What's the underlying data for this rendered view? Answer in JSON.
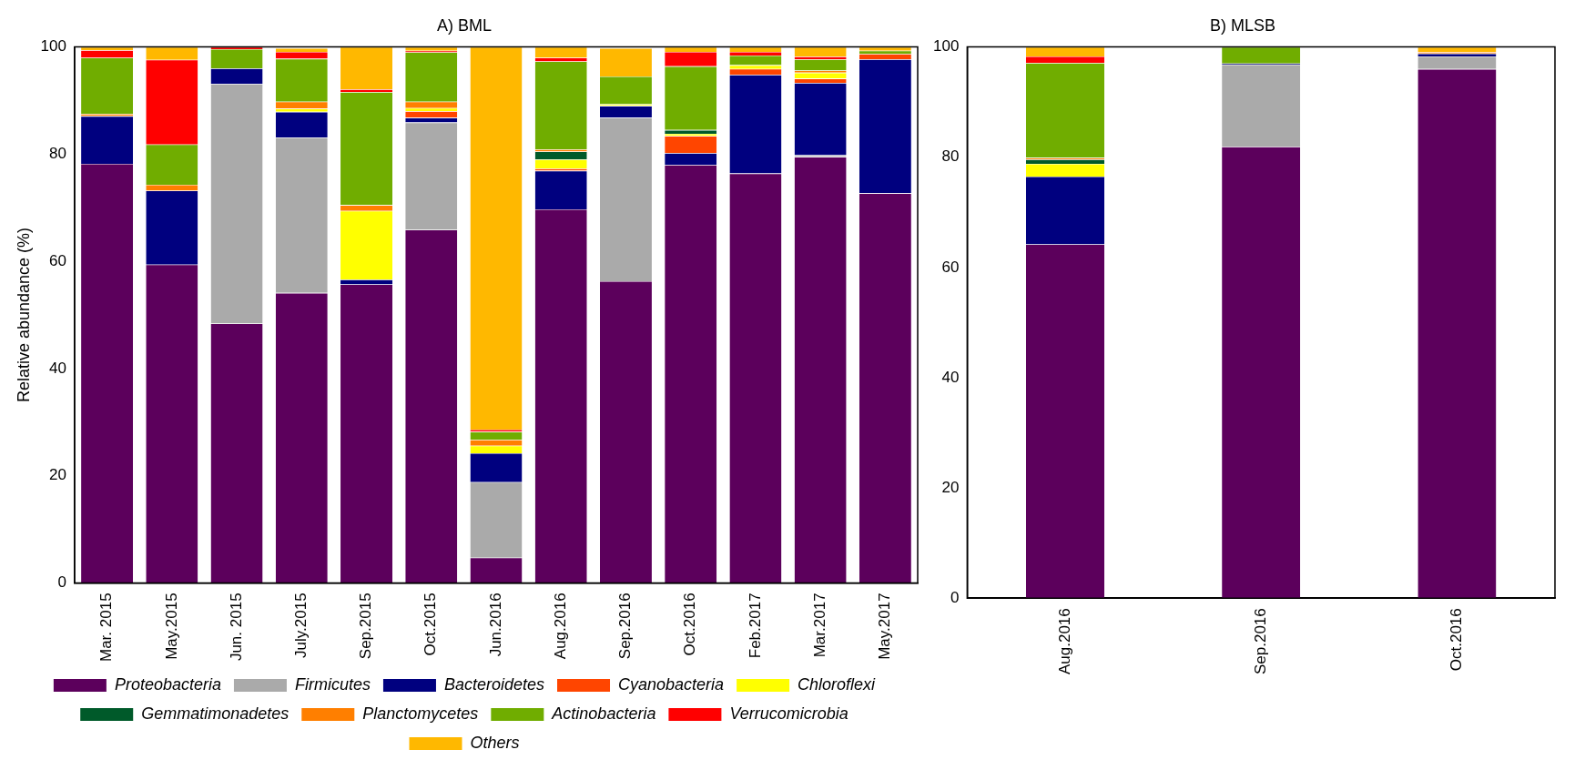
{
  "chart_data": [
    {
      "type": "bar",
      "stacked": true,
      "title": "A) BML",
      "ylabel": "Relative abundance (%)",
      "categories": [
        "Mar. 2015",
        "May.2015",
        "Jun. 2015",
        "July.2015",
        "Sep.2015",
        "Oct.2015",
        "Jun.2016",
        "Aug.2016",
        "Sep.2016",
        "Oct.2016",
        "Feb.2017",
        "Mar.2017",
        "May.2017"
      ],
      "series": [
        {
          "name": "Proteobacteria",
          "color": "#5c005c",
          "values": [
            78.2,
            59.4,
            48.4,
            54.1,
            55.7,
            65.9,
            4.7,
            69.7,
            56.3,
            78.0,
            76.4,
            79.5,
            72.7
          ]
        },
        {
          "name": "Firmicutes",
          "color": "#aaaaaa",
          "values": [
            0,
            0,
            44.7,
            29.0,
            0,
            20.0,
            14.1,
            0,
            30.5,
            0,
            0,
            0.3,
            0
          ]
        },
        {
          "name": "Bacteroidetes",
          "color": "#00007f",
          "values": [
            8.9,
            13.8,
            2.9,
            4.8,
            0.9,
            0.9,
            5.4,
            7.2,
            2.2,
            2.2,
            18.4,
            13.5,
            25.0
          ]
        },
        {
          "name": "Cyanobacteria",
          "color": "#ff4500",
          "values": [
            0,
            0,
            0,
            0,
            0,
            1.2,
            0,
            0.4,
            0,
            3.2,
            1.1,
            0.8,
            1.0
          ]
        },
        {
          "name": "Chloroflexi",
          "color": "#ffff00",
          "values": [
            0,
            0,
            0,
            0.6,
            12.8,
            0.6,
            1.4,
            1.7,
            0.3,
            0.4,
            0.7,
            1.1,
            0
          ]
        },
        {
          "name": "Gemmatimonadetes",
          "color": "#005a2a",
          "values": [
            0,
            0,
            0,
            null,
            0,
            0,
            0,
            1.5,
            null,
            0.7,
            0,
            0,
            0
          ]
        },
        {
          "name": "Planctomycetes",
          "color": "#ff7f00",
          "values": [
            0.4,
            1.1,
            0,
            1.3,
            1.1,
            1.2,
            1.1,
            0.4,
            0,
            0,
            0,
            0.4,
            0
          ]
        },
        {
          "name": "Actinobacteria",
          "color": "#70ad00",
          "values": [
            10.5,
            7.5,
            3.6,
            8.0,
            21.1,
            9.2,
            1.5,
            16.4,
            5.2,
            11.9,
            1.8,
            2.1,
            0.6
          ]
        },
        {
          "name": "Verrucomicrobia",
          "color": "#ff0000",
          "values": [
            1.4,
            15.8,
            0.4,
            1.3,
            0.5,
            0.3,
            0.4,
            0.7,
            0,
            2.7,
            0.7,
            0.5,
            0
          ]
        },
        {
          "name": "Others",
          "color": "#ffb800",
          "values": [
            0.6,
            2.4,
            0,
            0.7,
            7.9,
            0.7,
            71.4,
            2.0,
            5.3,
            0.9,
            0.9,
            1.8,
            0.7
          ]
        }
      ],
      "ylim": [
        0,
        100
      ],
      "yticks": [
        0,
        20,
        40,
        60,
        80,
        100
      ],
      "grid": false,
      "legend": "bottom"
    },
    {
      "type": "bar",
      "stacked": true,
      "title": "B) MLSB",
      "categories": [
        "Aug.2016",
        "Sep.2016",
        "Oct.2016"
      ],
      "series": [
        {
          "color": "#5c005c",
          "values": [
            64.2,
            81.9,
            96.0
          ]
        },
        {
          "color": "#aaaaaa",
          "values": [
            0,
            14.9,
            2.3
          ]
        },
        {
          "color": "#00007f",
          "values": [
            12.3,
            0.2,
            0.5
          ]
        },
        {
          "color": "#ff4500",
          "values": [
            0,
            0,
            0
          ]
        },
        {
          "color": "#ffff00",
          "values": [
            2.3,
            0,
            0
          ]
        },
        {
          "color": "#005a2a",
          "values": [
            0.8,
            0,
            0
          ]
        },
        {
          "color": "#ff7f00",
          "values": [
            0.3,
            0,
            0.3
          ]
        },
        {
          "color": "#70ad00",
          "values": [
            17.2,
            3.0,
            0
          ]
        },
        {
          "color": "#ff0000",
          "values": [
            1.2,
            0,
            0
          ]
        },
        {
          "color": "#ffb800",
          "values": [
            1.7,
            0,
            0.9
          ]
        }
      ],
      "ylim": [
        0,
        100
      ],
      "yticks": [
        0,
        20,
        40,
        60,
        80,
        100
      ],
      "grid": false,
      "legend": false
    }
  ]
}
